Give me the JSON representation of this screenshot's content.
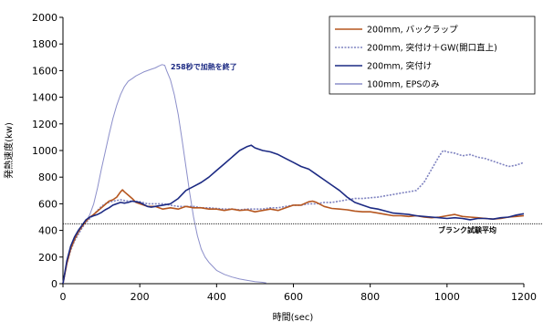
{
  "chart_data": {
    "type": "line",
    "xlabel": "時間(sec)",
    "ylabel": "発熱速度(kw)",
    "xlim": [
      0,
      1200
    ],
    "ylim": [
      0,
      2000
    ],
    "xticks": [
      0,
      200,
      400,
      600,
      800,
      1000,
      1200
    ],
    "yticks": [
      0,
      200,
      400,
      600,
      800,
      1000,
      1200,
      1400,
      1600,
      1800,
      2000
    ],
    "grid": false,
    "legend_position": "top-right",
    "series": [
      {
        "name": "200mm, バックラップ",
        "color": "#b5561f",
        "dash": "solid",
        "points": [
          [
            0,
            0
          ],
          [
            10,
            150
          ],
          [
            20,
            260
          ],
          [
            30,
            330
          ],
          [
            40,
            390
          ],
          [
            50,
            430
          ],
          [
            60,
            470
          ],
          [
            70,
            500
          ],
          [
            80,
            520
          ],
          [
            90,
            545
          ],
          [
            100,
            570
          ],
          [
            110,
            595
          ],
          [
            120,
            620
          ],
          [
            130,
            630
          ],
          [
            140,
            650
          ],
          [
            150,
            690
          ],
          [
            155,
            705
          ],
          [
            160,
            690
          ],
          [
            170,
            665
          ],
          [
            180,
            640
          ],
          [
            190,
            610
          ],
          [
            200,
            600
          ],
          [
            220,
            580
          ],
          [
            240,
            580
          ],
          [
            260,
            560
          ],
          [
            280,
            570
          ],
          [
            300,
            560
          ],
          [
            320,
            580
          ],
          [
            340,
            570
          ],
          [
            360,
            570
          ],
          [
            380,
            560
          ],
          [
            400,
            560
          ],
          [
            420,
            550
          ],
          [
            440,
            560
          ],
          [
            460,
            550
          ],
          [
            480,
            555
          ],
          [
            500,
            540
          ],
          [
            520,
            550
          ],
          [
            540,
            560
          ],
          [
            560,
            550
          ],
          [
            580,
            570
          ],
          [
            600,
            590
          ],
          [
            620,
            590
          ],
          [
            640,
            615
          ],
          [
            650,
            620
          ],
          [
            660,
            610
          ],
          [
            680,
            580
          ],
          [
            700,
            565
          ],
          [
            720,
            560
          ],
          [
            740,
            555
          ],
          [
            760,
            545
          ],
          [
            780,
            540
          ],
          [
            800,
            540
          ],
          [
            820,
            530
          ],
          [
            840,
            520
          ],
          [
            860,
            510
          ],
          [
            880,
            510
          ],
          [
            900,
            505
          ],
          [
            920,
            510
          ],
          [
            940,
            500
          ],
          [
            960,
            495
          ],
          [
            980,
            500
          ],
          [
            1000,
            510
          ],
          [
            1020,
            520
          ],
          [
            1040,
            505
          ],
          [
            1060,
            500
          ],
          [
            1080,
            495
          ],
          [
            1100,
            490
          ],
          [
            1120,
            485
          ],
          [
            1140,
            490
          ],
          [
            1160,
            500
          ],
          [
            1180,
            505
          ],
          [
            1200,
            510
          ]
        ]
      },
      {
        "name": "200mm, 突付け＋GW(開口直上)",
        "color": "#7f83c0",
        "dash": "2,1.5",
        "points": [
          [
            0,
            0
          ],
          [
            10,
            150
          ],
          [
            20,
            250
          ],
          [
            30,
            320
          ],
          [
            40,
            370
          ],
          [
            50,
            420
          ],
          [
            60,
            460
          ],
          [
            70,
            490
          ],
          [
            80,
            520
          ],
          [
            90,
            550
          ],
          [
            100,
            580
          ],
          [
            110,
            600
          ],
          [
            120,
            610
          ],
          [
            130,
            620
          ],
          [
            140,
            625
          ],
          [
            150,
            630
          ],
          [
            160,
            625
          ],
          [
            170,
            620
          ],
          [
            180,
            620
          ],
          [
            200,
            615
          ],
          [
            220,
            600
          ],
          [
            240,
            600
          ],
          [
            260,
            600
          ],
          [
            280,
            590
          ],
          [
            300,
            580
          ],
          [
            320,
            580
          ],
          [
            340,
            580
          ],
          [
            360,
            570
          ],
          [
            380,
            570
          ],
          [
            400,
            565
          ],
          [
            420,
            560
          ],
          [
            440,
            560
          ],
          [
            460,
            555
          ],
          [
            480,
            560
          ],
          [
            500,
            560
          ],
          [
            520,
            560
          ],
          [
            540,
            570
          ],
          [
            560,
            570
          ],
          [
            580,
            580
          ],
          [
            600,
            590
          ],
          [
            620,
            590
          ],
          [
            640,
            600
          ],
          [
            660,
            600
          ],
          [
            680,
            610
          ],
          [
            700,
            610
          ],
          [
            720,
            620
          ],
          [
            740,
            630
          ],
          [
            760,
            640
          ],
          [
            780,
            640
          ],
          [
            800,
            645
          ],
          [
            820,
            650
          ],
          [
            840,
            660
          ],
          [
            860,
            670
          ],
          [
            880,
            680
          ],
          [
            900,
            690
          ],
          [
            920,
            700
          ],
          [
            940,
            760
          ],
          [
            960,
            860
          ],
          [
            980,
            960
          ],
          [
            990,
            1000
          ],
          [
            1000,
            990
          ],
          [
            1020,
            980
          ],
          [
            1040,
            960
          ],
          [
            1060,
            970
          ],
          [
            1080,
            950
          ],
          [
            1100,
            940
          ],
          [
            1120,
            920
          ],
          [
            1140,
            900
          ],
          [
            1160,
            880
          ],
          [
            1180,
            890
          ],
          [
            1200,
            910
          ]
        ]
      },
      {
        "name": "200mm, 突付け",
        "color": "#1c2a83",
        "dash": "solid",
        "points": [
          [
            0,
            0
          ],
          [
            10,
            170
          ],
          [
            20,
            280
          ],
          [
            30,
            350
          ],
          [
            40,
            400
          ],
          [
            50,
            440
          ],
          [
            60,
            480
          ],
          [
            70,
            500
          ],
          [
            80,
            510
          ],
          [
            90,
            520
          ],
          [
            100,
            535
          ],
          [
            110,
            555
          ],
          [
            120,
            570
          ],
          [
            130,
            590
          ],
          [
            140,
            600
          ],
          [
            150,
            610
          ],
          [
            160,
            605
          ],
          [
            170,
            610
          ],
          [
            180,
            620
          ],
          [
            190,
            615
          ],
          [
            200,
            610
          ],
          [
            210,
            595
          ],
          [
            220,
            580
          ],
          [
            230,
            575
          ],
          [
            240,
            580
          ],
          [
            260,
            590
          ],
          [
            280,
            600
          ],
          [
            300,
            640
          ],
          [
            320,
            700
          ],
          [
            340,
            730
          ],
          [
            360,
            760
          ],
          [
            380,
            800
          ],
          [
            400,
            850
          ],
          [
            420,
            900
          ],
          [
            440,
            950
          ],
          [
            460,
            1000
          ],
          [
            480,
            1030
          ],
          [
            490,
            1040
          ],
          [
            500,
            1020
          ],
          [
            520,
            1000
          ],
          [
            540,
            990
          ],
          [
            560,
            970
          ],
          [
            580,
            940
          ],
          [
            600,
            910
          ],
          [
            620,
            880
          ],
          [
            640,
            860
          ],
          [
            660,
            820
          ],
          [
            680,
            780
          ],
          [
            700,
            740
          ],
          [
            720,
            700
          ],
          [
            740,
            650
          ],
          [
            760,
            610
          ],
          [
            780,
            590
          ],
          [
            800,
            570
          ],
          [
            820,
            560
          ],
          [
            840,
            545
          ],
          [
            860,
            530
          ],
          [
            880,
            525
          ],
          [
            900,
            520
          ],
          [
            920,
            510
          ],
          [
            940,
            505
          ],
          [
            960,
            500
          ],
          [
            980,
            495
          ],
          [
            1000,
            490
          ],
          [
            1020,
            495
          ],
          [
            1040,
            490
          ],
          [
            1060,
            480
          ],
          [
            1080,
            490
          ],
          [
            1100,
            490
          ],
          [
            1120,
            485
          ],
          [
            1140,
            495
          ],
          [
            1160,
            500
          ],
          [
            1180,
            515
          ],
          [
            1200,
            525
          ]
        ]
      },
      {
        "name": "100mm, EPSのみ",
        "color": "#8c8fca",
        "dash": "solid",
        "points": [
          [
            0,
            0
          ],
          [
            10,
            160
          ],
          [
            20,
            260
          ],
          [
            30,
            330
          ],
          [
            40,
            380
          ],
          [
            50,
            430
          ],
          [
            60,
            470
          ],
          [
            70,
            520
          ],
          [
            80,
            600
          ],
          [
            90,
            720
          ],
          [
            100,
            860
          ],
          [
            110,
            990
          ],
          [
            120,
            1120
          ],
          [
            130,
            1240
          ],
          [
            140,
            1340
          ],
          [
            150,
            1420
          ],
          [
            160,
            1480
          ],
          [
            170,
            1520
          ],
          [
            180,
            1540
          ],
          [
            190,
            1560
          ],
          [
            200,
            1575
          ],
          [
            210,
            1590
          ],
          [
            220,
            1600
          ],
          [
            230,
            1610
          ],
          [
            240,
            1620
          ],
          [
            250,
            1635
          ],
          [
            258,
            1645
          ],
          [
            265,
            1640
          ],
          [
            270,
            1600
          ],
          [
            280,
            1530
          ],
          [
            290,
            1420
          ],
          [
            300,
            1270
          ],
          [
            310,
            1080
          ],
          [
            320,
            880
          ],
          [
            330,
            680
          ],
          [
            340,
            500
          ],
          [
            350,
            360
          ],
          [
            360,
            260
          ],
          [
            370,
            200
          ],
          [
            380,
            160
          ],
          [
            390,
            130
          ],
          [
            400,
            100
          ],
          [
            420,
            70
          ],
          [
            440,
            50
          ],
          [
            460,
            35
          ],
          [
            480,
            25
          ],
          [
            500,
            15
          ],
          [
            520,
            10
          ],
          [
            530,
            5
          ]
        ]
      }
    ],
    "reference_line": {
      "y": 450,
      "label": "ブランク試験平均",
      "color": "#000000"
    },
    "annotations": [
      {
        "text": "258秒で加熱を終了",
        "x": 258,
        "y": 1645,
        "color": "#1c2a83"
      }
    ]
  }
}
